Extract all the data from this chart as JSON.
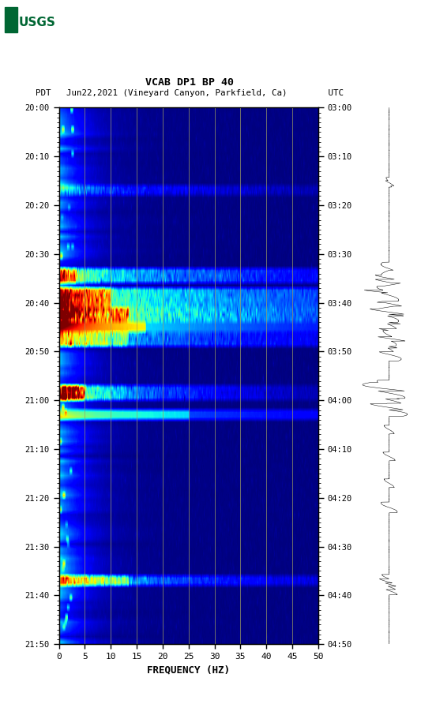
{
  "title_line1": "VCAB DP1 BP 40",
  "title_line2": "PDT   Jun22,2021 (Vineyard Canyon, Parkfield, Ca)        UTC",
  "left_yticks": [
    "20:00",
    "20:10",
    "20:20",
    "20:30",
    "20:40",
    "20:50",
    "21:00",
    "21:10",
    "21:20",
    "21:30",
    "21:40",
    "21:50"
  ],
  "right_yticks": [
    "03:00",
    "03:10",
    "03:20",
    "03:30",
    "03:40",
    "03:50",
    "04:00",
    "04:10",
    "04:20",
    "04:30",
    "04:40",
    "04:50"
  ],
  "xlabel": "FREQUENCY (HZ)",
  "xmin": 0,
  "xmax": 50,
  "xticks": [
    0,
    5,
    10,
    15,
    20,
    25,
    30,
    35,
    40,
    45,
    50
  ],
  "vgrid_positions": [
    5,
    10,
    15,
    20,
    25,
    30,
    35,
    40,
    45
  ],
  "fig_bg": "#ffffff",
  "colormap": "jet",
  "n_time_bins": 110,
  "n_freq_bins": 300,
  "logo_color": "#006633"
}
